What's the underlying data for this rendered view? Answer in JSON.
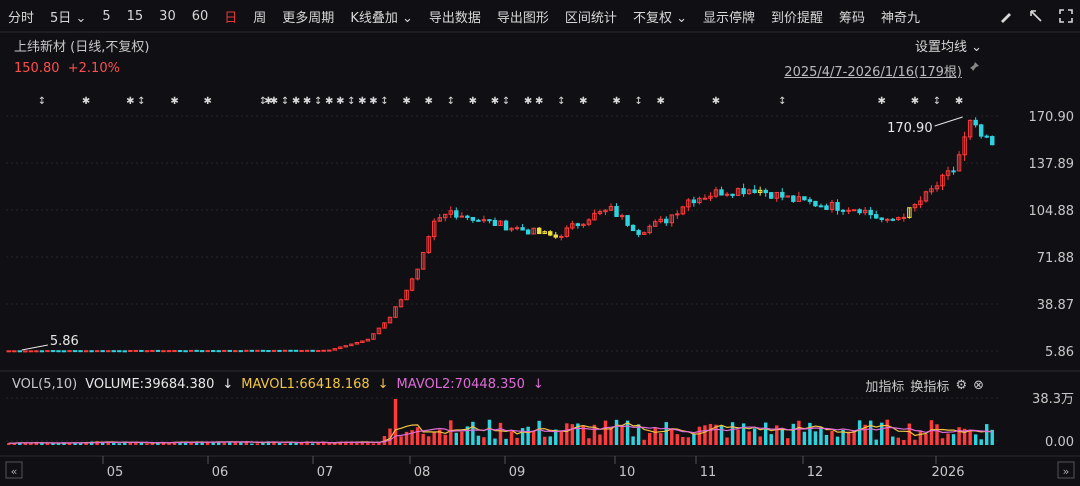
{
  "toolbar": {
    "items": [
      "分时",
      "5日",
      "5",
      "15",
      "30",
      "60",
      "日",
      "周",
      "更多周期",
      "K线叠加",
      "导出数据",
      "导出图形",
      "区间统计",
      "不复权",
      "显示停牌",
      "到价提醒",
      "筹码",
      "神奇九"
    ],
    "active_index": 6,
    "icons": [
      "brush-icon",
      "arrow-icon",
      "fullscreen-icon"
    ]
  },
  "stock": {
    "name": "上纬新材 (日线,不复权)",
    "price": "150.80",
    "change": "+2.10%",
    "range": "2025/4/7-2026/1/16(179根)",
    "set_ma": "设置均线"
  },
  "volume_header": {
    "label": "VOL(5,10)",
    "volume": "VOLUME:39684.380",
    "mavol1": "MAVOL1:66418.168",
    "mavol2": "MAVOL2:70448.350",
    "add_indicator": "加指标",
    "change_indicator": "换指标"
  },
  "colors": {
    "up": "#ff3b3b",
    "down": "#2ed3e0",
    "bg": "#101014",
    "ma5": "#f4c542",
    "ma10": "#e06bd8",
    "yellow": "#f0e040"
  },
  "chart_data": {
    "type": "candlestick",
    "price_axis": {
      "ticks": [
        5.86,
        38.87,
        71.88,
        104.88,
        137.89,
        170.9
      ],
      "min": 5.86,
      "max": 170.9
    },
    "volume_axis": {
      "ticks": [
        "38.3万",
        "0.00"
      ]
    },
    "x_labels": [
      "05",
      "06",
      "07",
      "08",
      "09",
      "10",
      "11",
      "12",
      "2026"
    ],
    "annotations": [
      {
        "label": "5.86",
        "type": "low"
      },
      {
        "label": "170.90",
        "type": "high"
      }
    ],
    "last_close": 150.8,
    "volume_last": 39684.38,
    "mavol1_last": 66418.168,
    "mavol2_last": 70448.35
  }
}
